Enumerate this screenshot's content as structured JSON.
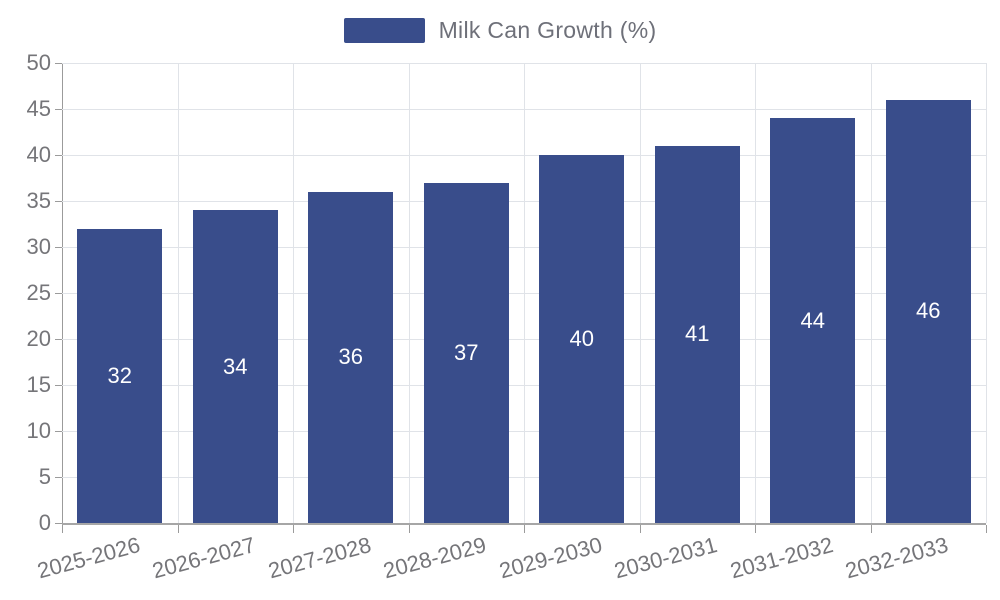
{
  "chart_data": {
    "type": "bar",
    "title": "Milk Can Growth (%)",
    "legend": {
      "position": "top",
      "label": "Milk Can Growth (%)"
    },
    "categories": [
      "2025-2026",
      "2026-2027",
      "2027-2028",
      "2028-2029",
      "2029-2030",
      "2030-2031",
      "2031-2032",
      "2032-2033"
    ],
    "values": [
      32,
      34,
      36,
      37,
      40,
      41,
      44,
      46
    ],
    "value_labels": [
      "32",
      "34",
      "36",
      "37",
      "40",
      "41",
      "44",
      "46"
    ],
    "xlabel": "",
    "ylabel": "",
    "ylim": [
      0,
      50
    ],
    "ytick_step": 5,
    "ytick_labels": [
      "0",
      "5",
      "10",
      "15",
      "20",
      "25",
      "30",
      "35",
      "40",
      "45",
      "50"
    ],
    "grid": true,
    "colors": {
      "bar": "#394d8b",
      "bar_value_text": "#ffffff",
      "gridline": "#e0e3e8",
      "axis_line": "#9b9b9b",
      "tick_text": "#757579",
      "legend_text": "#6e7079",
      "background": "#ffffff"
    }
  }
}
